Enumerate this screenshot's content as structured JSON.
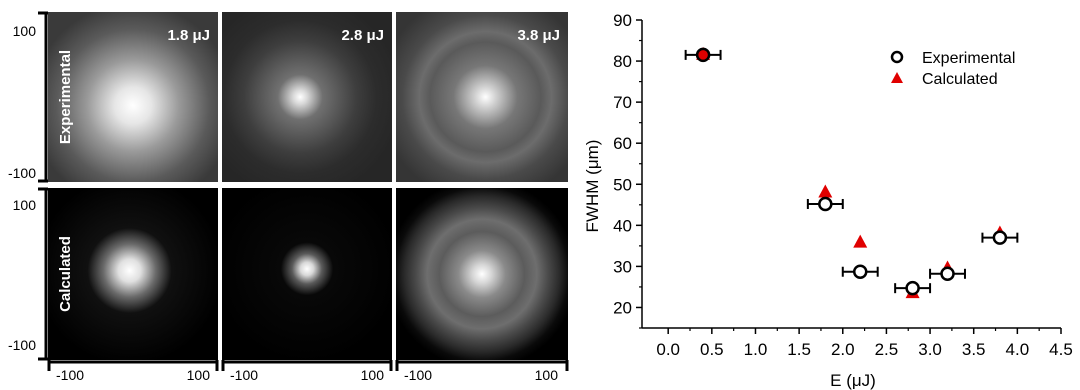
{
  "images": {
    "row_labels": [
      "Experimental",
      "Calculated"
    ],
    "columns": [
      {
        "energy_label": "1.8 μJ"
      },
      {
        "energy_label": "2.8 μJ"
      },
      {
        "energy_label": "3.8 μJ"
      }
    ],
    "y_tick_labels": [
      "100",
      "-100",
      "100",
      "-100"
    ],
    "x_tick_labels": [
      "-100",
      "100"
    ]
  },
  "chart_data": {
    "type": "scatter",
    "xlabel": "E (μJ)",
    "ylabel": "FWHM (μm)",
    "xlim": [
      -0.3,
      4.5
    ],
    "ylim": [
      15,
      90
    ],
    "x_ticks": [
      0.0,
      0.5,
      1.0,
      1.5,
      2.0,
      2.5,
      3.0,
      3.5,
      4.0,
      4.5
    ],
    "y_ticks": [
      20,
      30,
      40,
      50,
      60,
      70,
      80,
      90
    ],
    "x_tick_labels": [
      "0.0",
      "0.5",
      "1.0",
      "1.5",
      "2.0",
      "2.5",
      "3.0",
      "3.5",
      "4.0",
      "4.5"
    ],
    "y_tick_labels": [
      "20",
      "30",
      "40",
      "50",
      "60",
      "70",
      "80",
      "90"
    ],
    "legend_position": "top-right",
    "series": [
      {
        "name": "Experimental",
        "marker": "open-circle",
        "color": "#000000",
        "x": [
          0.4,
          1.8,
          2.2,
          2.8,
          3.2,
          3.8
        ],
        "y": [
          81.5,
          45.2,
          28.7,
          24.7,
          28.2,
          37.0
        ],
        "x_error": [
          0.2,
          0.2,
          0.2,
          0.2,
          0.2,
          0.2
        ]
      },
      {
        "name": "Calculated",
        "marker": "filled-triangle",
        "color": "#e00000",
        "x": [
          0.4,
          1.8,
          2.2,
          2.8,
          3.2,
          3.8
        ],
        "y": [
          81.5,
          48.0,
          35.8,
          23.5,
          29.5,
          38.0
        ]
      }
    ]
  }
}
